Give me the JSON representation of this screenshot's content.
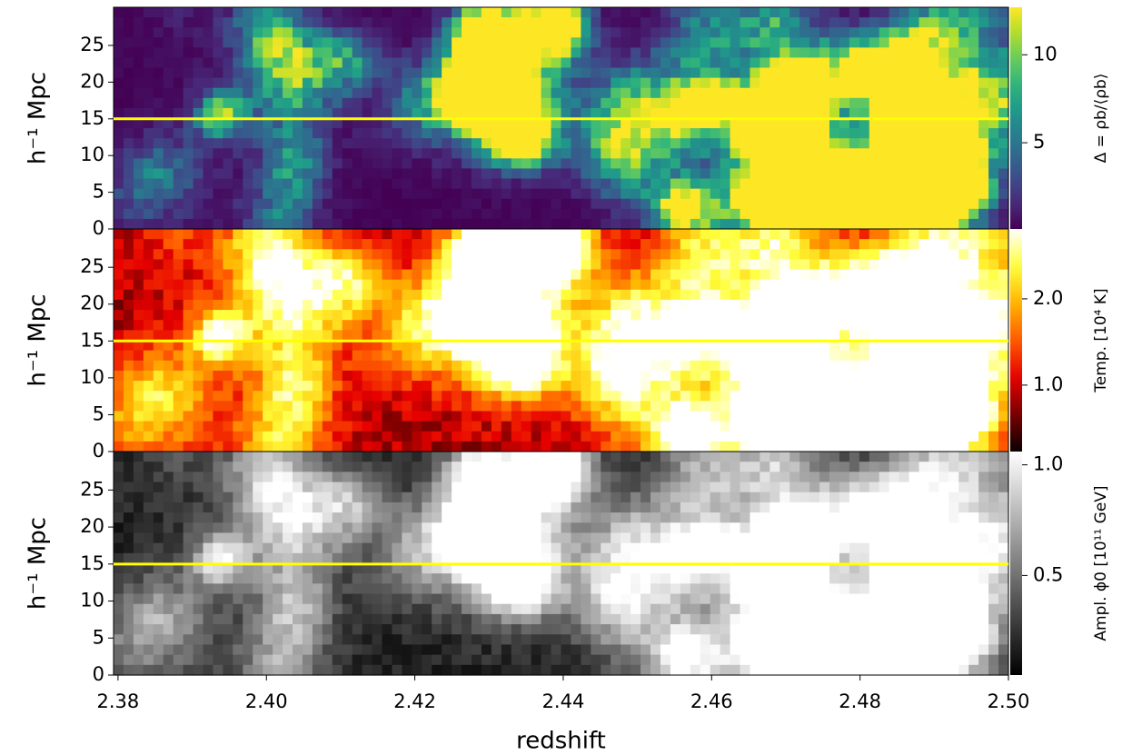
{
  "chart_data": [
    {
      "type": "heatmap",
      "ylabel": "h⁻¹ Mpc",
      "ylim": [
        0,
        30.2
      ],
      "yticks": [
        0,
        5,
        10,
        15,
        20,
        25
      ],
      "xlim": [
        2.3794,
        2.5
      ],
      "hline": {
        "value": 15,
        "color": "#ffff00"
      },
      "colorbar": {
        "label": "Δ = ρb/⟨ρb⟩",
        "cmap": "viridis",
        "clim": [
          0.1,
          12.7
        ],
        "ticks": [
          5,
          10
        ]
      }
    },
    {
      "type": "heatmap",
      "ylabel": "h⁻¹ Mpc",
      "ylim": [
        0,
        30.2
      ],
      "yticks": [
        0,
        5,
        10,
        15,
        20,
        25
      ],
      "xlim": [
        2.3794,
        2.5
      ],
      "hline": {
        "value": 15,
        "color": "#ffff00"
      },
      "colorbar": {
        "label": "Temp. [10⁴ K]",
        "cmap": "hot",
        "clim": [
          0.23,
          2.81
        ],
        "ticks": [
          {
            "value": 1,
            "label": "1.0"
          },
          {
            "value": 2,
            "label": "2.0"
          }
        ]
      }
    },
    {
      "type": "heatmap",
      "ylabel": "h⁻¹ Mpc",
      "ylim": [
        0,
        30.2
      ],
      "yticks": [
        0,
        5,
        10,
        15,
        20,
        25
      ],
      "xlim": [
        2.3794,
        2.5
      ],
      "hline": {
        "value": 15,
        "color": "#ffff00"
      },
      "xlabel": "redshift",
      "xticks": [
        2.38,
        {
          "value": 2.4,
          "label": "2.40"
        },
        2.42,
        2.44,
        2.46,
        2.48,
        {
          "value": 2.5,
          "label": "2.50"
        }
      ],
      "colorbar": {
        "label": "Ampl. ϕ0 [10¹¹ GeV]",
        "cmap": "gray",
        "clim": [
          0.05,
          1.06
        ],
        "ticks": [
          {
            "value": 0.5,
            "label": "0.5"
          },
          {
            "value": 1,
            "label": "1.0"
          }
        ]
      }
    }
  ]
}
